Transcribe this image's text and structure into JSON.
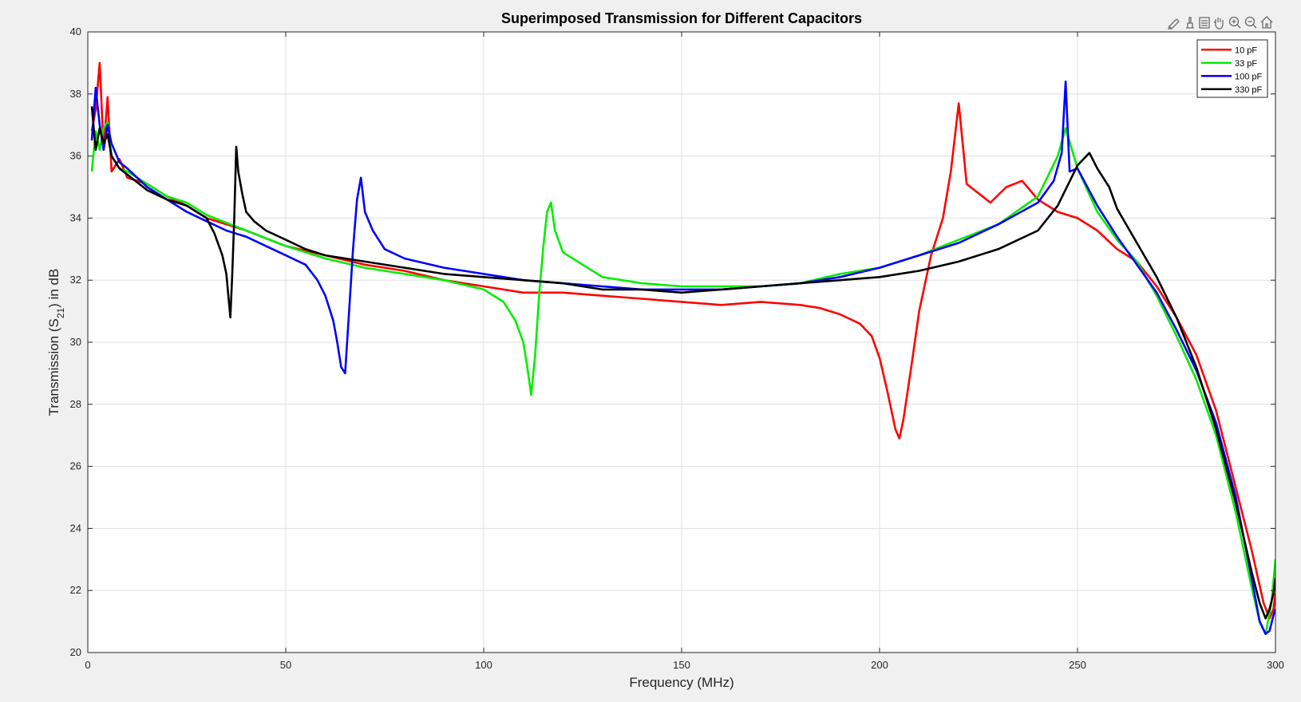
{
  "window": {
    "background": "#f0f0f0"
  },
  "toolbar": {
    "buttons": [
      {
        "name": "brush-icon"
      },
      {
        "name": "datatip-icon"
      },
      {
        "name": "legend-toggle-icon"
      },
      {
        "name": "pan-icon"
      },
      {
        "name": "zoom-in-icon"
      },
      {
        "name": "zoom-out-icon"
      },
      {
        "name": "home-icon"
      }
    ]
  },
  "chart_data": {
    "type": "line",
    "title": "Superimposed Transmission for Different Capacitors",
    "xlabel": "Frequency (MHz)",
    "ylabel_main": "Transmission (S",
    "ylabel_sub": "21",
    "ylabel_tail": ") in dB",
    "xlim": [
      0,
      300
    ],
    "ylim": [
      20,
      40
    ],
    "xticks": [
      "0",
      "50",
      "100",
      "150",
      "200",
      "250",
      "300"
    ],
    "yticks": [
      "20",
      "22",
      "24",
      "26",
      "28",
      "30",
      "32",
      "34",
      "36",
      "38",
      "40"
    ],
    "grid": true,
    "legend_position": "top-right",
    "series": [
      {
        "name": "10 pF",
        "color": "#ff0000",
        "x": [
          1,
          2,
          3,
          4,
          5,
          6,
          8,
          10,
          15,
          20,
          25,
          30,
          40,
          50,
          60,
          70,
          80,
          90,
          100,
          110,
          120,
          130,
          140,
          150,
          160,
          170,
          180,
          185,
          190,
          195,
          198,
          200,
          202,
          204,
          205,
          206,
          208,
          210,
          213,
          216,
          218,
          220,
          222,
          225,
          228,
          232,
          236,
          240,
          245,
          250,
          255,
          260,
          265,
          270,
          275,
          280,
          285,
          290,
          294,
          297,
          298.5,
          299.5,
          300
        ],
        "y": [
          36.8,
          37.5,
          39.0,
          36.2,
          37.9,
          35.5,
          35.9,
          35.3,
          35.1,
          34.7,
          34.4,
          34.0,
          33.6,
          33.1,
          32.8,
          32.5,
          32.3,
          32.0,
          31.8,
          31.6,
          31.6,
          31.5,
          31.4,
          31.3,
          31.2,
          31.3,
          31.2,
          31.1,
          30.9,
          30.6,
          30.2,
          29.5,
          28.4,
          27.2,
          26.9,
          27.5,
          29.2,
          31.0,
          32.8,
          34.0,
          35.5,
          37.7,
          35.1,
          34.8,
          34.5,
          35.0,
          35.2,
          34.6,
          34.2,
          34.0,
          33.6,
          33.0,
          32.6,
          31.8,
          30.8,
          29.6,
          27.8,
          25.3,
          23.3,
          21.6,
          21.1,
          21.4,
          21.9
        ]
      },
      {
        "name": "33 pF",
        "color": "#00ee00",
        "x": [
          1,
          2,
          3,
          4,
          5,
          6,
          8,
          10,
          15,
          20,
          25,
          30,
          40,
          50,
          60,
          70,
          80,
          90,
          100,
          105,
          108,
          110,
          111,
          112,
          113,
          114,
          115,
          116,
          117,
          118,
          120,
          125,
          130,
          140,
          150,
          160,
          170,
          180,
          190,
          200,
          210,
          220,
          230,
          240,
          245,
          247,
          250,
          255,
          260,
          265,
          270,
          275,
          280,
          285,
          290,
          294,
          296,
          297.5,
          299,
          300
        ],
        "y": [
          35.5,
          36.8,
          36.2,
          36.9,
          37.1,
          36.0,
          35.6,
          35.5,
          35.1,
          34.7,
          34.5,
          34.1,
          33.6,
          33.1,
          32.7,
          32.4,
          32.2,
          32.0,
          31.7,
          31.3,
          30.7,
          30.0,
          29.2,
          28.3,
          29.6,
          31.5,
          33.0,
          34.2,
          34.5,
          33.6,
          32.9,
          32.5,
          32.1,
          31.9,
          31.8,
          31.8,
          31.8,
          31.9,
          32.2,
          32.4,
          32.8,
          33.3,
          33.8,
          34.7,
          36.0,
          36.9,
          35.6,
          34.2,
          33.3,
          32.6,
          31.5,
          30.2,
          28.8,
          27.0,
          24.5,
          22.1,
          21.0,
          20.6,
          21.6,
          23.0
        ]
      },
      {
        "name": "100 pF",
        "color": "#0000ff",
        "x": [
          1,
          2,
          3,
          4,
          5,
          6,
          8,
          10,
          15,
          20,
          25,
          30,
          35,
          40,
          45,
          50,
          55,
          58,
          60,
          62,
          63,
          64,
          65,
          66,
          67,
          68,
          69,
          70,
          72,
          75,
          80,
          90,
          100,
          110,
          120,
          130,
          140,
          150,
          160,
          170,
          180,
          190,
          200,
          210,
          220,
          230,
          240,
          244,
          246,
          247,
          248,
          250,
          255,
          260,
          265,
          270,
          275,
          280,
          285,
          290,
          294,
          296,
          297.5,
          298.5,
          299.5,
          300
        ],
        "y": [
          36.5,
          38.2,
          37.0,
          36.2,
          37.0,
          36.4,
          35.8,
          35.6,
          35.0,
          34.6,
          34.2,
          33.9,
          33.6,
          33.4,
          33.1,
          32.8,
          32.5,
          32.0,
          31.5,
          30.7,
          30.0,
          29.2,
          29.0,
          31.0,
          33.0,
          34.6,
          35.3,
          34.2,
          33.6,
          33.0,
          32.7,
          32.4,
          32.2,
          32.0,
          31.9,
          31.8,
          31.7,
          31.7,
          31.7,
          31.8,
          31.9,
          32.1,
          32.4,
          32.8,
          33.2,
          33.8,
          34.5,
          35.2,
          36.1,
          38.4,
          35.5,
          35.6,
          34.4,
          33.4,
          32.5,
          31.6,
          30.4,
          29.1,
          27.4,
          25.0,
          22.4,
          21.0,
          20.6,
          20.7,
          21.2,
          21.4
        ]
      },
      {
        "name": "330 pF",
        "color": "#000000",
        "x": [
          1,
          2,
          3,
          4,
          5,
          6,
          8,
          10,
          15,
          20,
          25,
          30,
          32,
          34,
          35,
          35.5,
          36,
          36.5,
          37,
          37.5,
          38,
          39,
          40,
          42,
          45,
          50,
          55,
          60,
          70,
          80,
          90,
          100,
          110,
          120,
          130,
          140,
          150,
          160,
          170,
          180,
          190,
          200,
          210,
          220,
          230,
          240,
          245,
          250,
          253,
          255,
          258,
          260,
          265,
          270,
          275,
          280,
          285,
          290,
          294,
          296,
          297.5,
          298.5,
          299.5,
          300
        ],
        "y": [
          37.6,
          36.2,
          36.9,
          36.4,
          36.7,
          36.0,
          35.6,
          35.4,
          34.9,
          34.6,
          34.4,
          34.0,
          33.5,
          32.8,
          32.2,
          31.5,
          30.8,
          32.2,
          34.0,
          36.3,
          35.5,
          34.8,
          34.2,
          33.9,
          33.6,
          33.3,
          33.0,
          32.8,
          32.6,
          32.4,
          32.2,
          32.1,
          32.0,
          31.9,
          31.7,
          31.7,
          31.6,
          31.7,
          31.8,
          31.9,
          32.0,
          32.1,
          32.3,
          32.6,
          33.0,
          33.6,
          34.4,
          35.7,
          36.1,
          35.6,
          35.0,
          34.3,
          33.2,
          32.1,
          30.8,
          29.2,
          27.2,
          24.8,
          22.6,
          21.6,
          21.1,
          21.4,
          21.9,
          22.4
        ]
      }
    ]
  }
}
